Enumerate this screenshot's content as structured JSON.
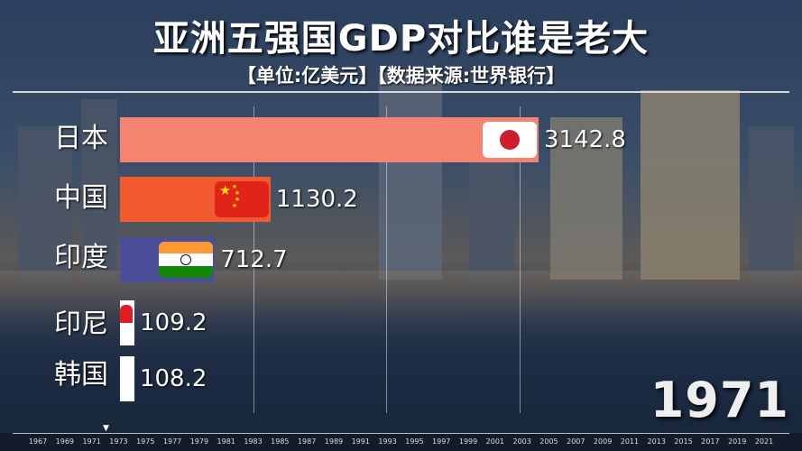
{
  "title": "亚洲五强国GDP对比谁是老大",
  "subtitle": "【单位:亿美元】【数据来源:世界银行】",
  "year_label": "1971",
  "chart_data": {
    "type": "bar",
    "orientation": "horizontal",
    "title": "亚洲五强国GDP对比谁是老大",
    "unit": "亿美元",
    "source": "世界银行",
    "year": "1971",
    "categories": [
      "日本",
      "中国",
      "印度",
      "印尼",
      "韩国"
    ],
    "values": [
      3142.8,
      1130.2,
      712.7,
      109.2,
      108.2
    ],
    "value_labels": [
      "3142.8",
      "1130.2",
      "712.7",
      "109.2",
      "108.2"
    ],
    "flags": [
      "japan-flag",
      "china-flag",
      "india-flag",
      "indonesia-flag",
      "korea-flag"
    ],
    "colors": [
      "#f4836f",
      "#f05a2e",
      "#4b4f9a",
      "#ffffff",
      "#ffffff"
    ],
    "xlim": [
      0,
      3350
    ],
    "grid_values": [
      1000,
      2000,
      3000
    ],
    "timeline_ticks": [
      "1967",
      "1969",
      "1971",
      "1973",
      "1975",
      "1977",
      "1979",
      "1981",
      "1983",
      "1985",
      "1987",
      "1989",
      "1991",
      "1993",
      "1995",
      "1997",
      "1999",
      "2001",
      "2003",
      "2005",
      "2007",
      "2009",
      "2011",
      "2013",
      "2015",
      "2017",
      "2019",
      "2021"
    ]
  }
}
